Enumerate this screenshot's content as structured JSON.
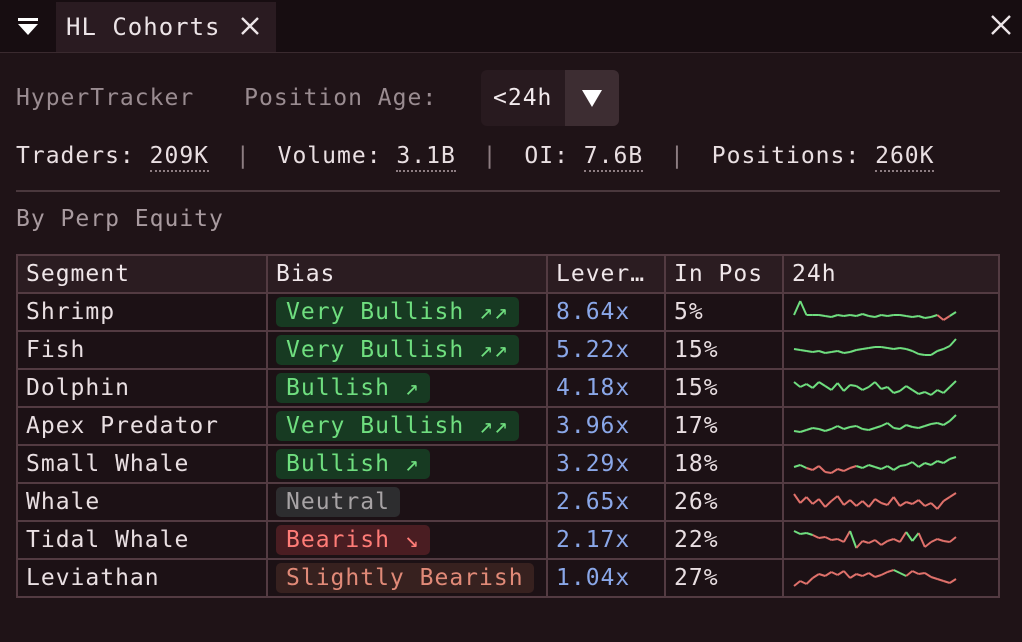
{
  "tab": {
    "title": "HL Cohorts"
  },
  "header": {
    "source": "HyperTracker",
    "position_age_label": "Position Age:",
    "position_age_value": "<24h"
  },
  "stats": {
    "traders_label": "Traders:",
    "traders": "209K",
    "volume_label": "Volume:",
    "volume": "3.1B",
    "oi_label": "OI:",
    "oi": "7.6B",
    "positions_label": "Positions:",
    "positions": "260K",
    "separator": "|"
  },
  "section_title": "By Perp Equity",
  "table": {
    "headers": {
      "segment": "Segment",
      "bias": "Bias",
      "leverage": "Lever…",
      "in_pos": "In Pos",
      "spark": "24h"
    },
    "rows": [
      {
        "segment": "Shrimp",
        "bias": "Very Bullish ↗↗",
        "bias_kind": "vbull",
        "leverage": "8.64x",
        "in_pos": "5%"
      },
      {
        "segment": "Fish",
        "bias": "Very Bullish ↗↗",
        "bias_kind": "vbull",
        "leverage": "5.22x",
        "in_pos": "15%"
      },
      {
        "segment": "Dolphin",
        "bias": "Bullish ↗",
        "bias_kind": "bull",
        "leverage": "4.18x",
        "in_pos": "15%"
      },
      {
        "segment": "Apex Predator",
        "bias": "Very Bullish ↗↗",
        "bias_kind": "vbull",
        "leverage": "3.96x",
        "in_pos": "17%"
      },
      {
        "segment": "Small Whale",
        "bias": "Bullish ↗",
        "bias_kind": "bull",
        "leverage": "3.29x",
        "in_pos": "18%"
      },
      {
        "segment": "Whale",
        "bias": "Neutral",
        "bias_kind": "neu",
        "leverage": "2.65x",
        "in_pos": "26%"
      },
      {
        "segment": "Tidal Whale",
        "bias": "Bearish ↘",
        "bias_kind": "bear",
        "leverage": "2.17x",
        "in_pos": "22%"
      },
      {
        "segment": "Leviathan",
        "bias": "Slightly Bearish",
        "bias_kind": "sbear",
        "leverage": "1.04x",
        "in_pos": "27%"
      }
    ]
  },
  "colors": {
    "bullish": "#6fde7f",
    "bearish": "#e0716b",
    "leverage": "#8aa7e8"
  }
}
